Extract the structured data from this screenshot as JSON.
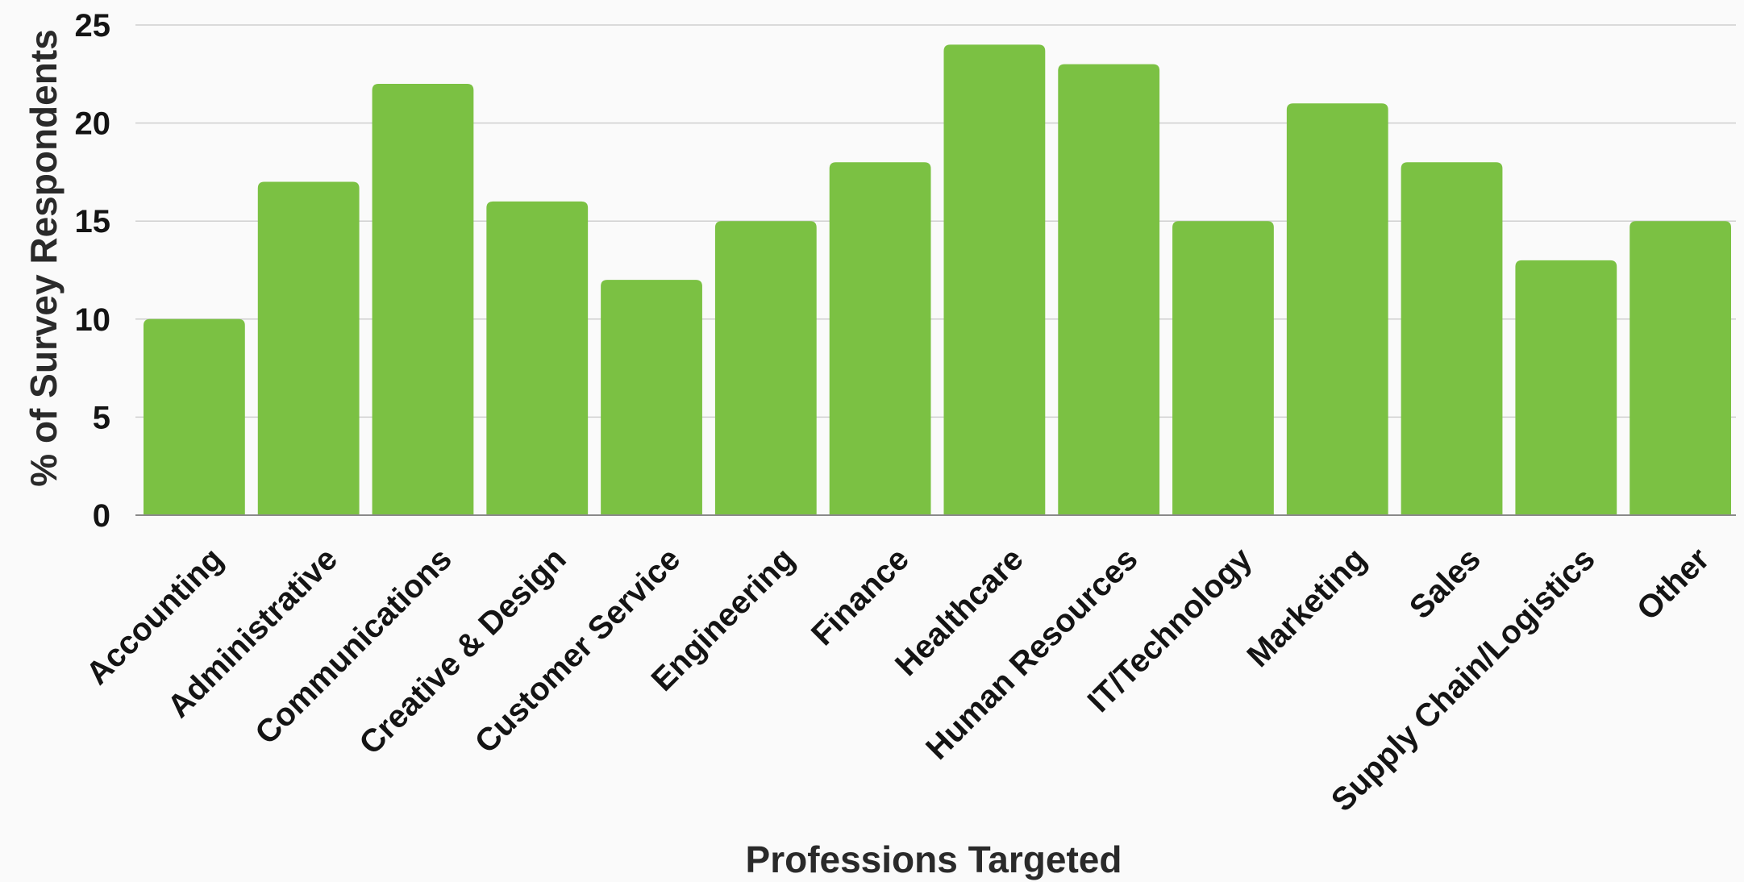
{
  "chart_data": {
    "type": "bar",
    "categories": [
      "Accounting",
      "Administrative",
      "Communications",
      "Creative & Design",
      "Customer Service",
      "Engineering",
      "Finance",
      "Healthcare",
      "Human Resources",
      "IT/Technology",
      "Marketing",
      "Sales",
      "Supply Chain/Logistics",
      "Other"
    ],
    "values": [
      10,
      17,
      22,
      16,
      12,
      15,
      18,
      24,
      23,
      15,
      21,
      18,
      13,
      15
    ],
    "title": "",
    "xlabel": "Professions Targeted",
    "ylabel": "% of Survey Respondents",
    "ylim": [
      0,
      25
    ],
    "yticks": [
      0,
      5,
      10,
      15,
      20,
      25
    ],
    "grid": true,
    "legend": "none",
    "bar_color": "#7bc143"
  }
}
